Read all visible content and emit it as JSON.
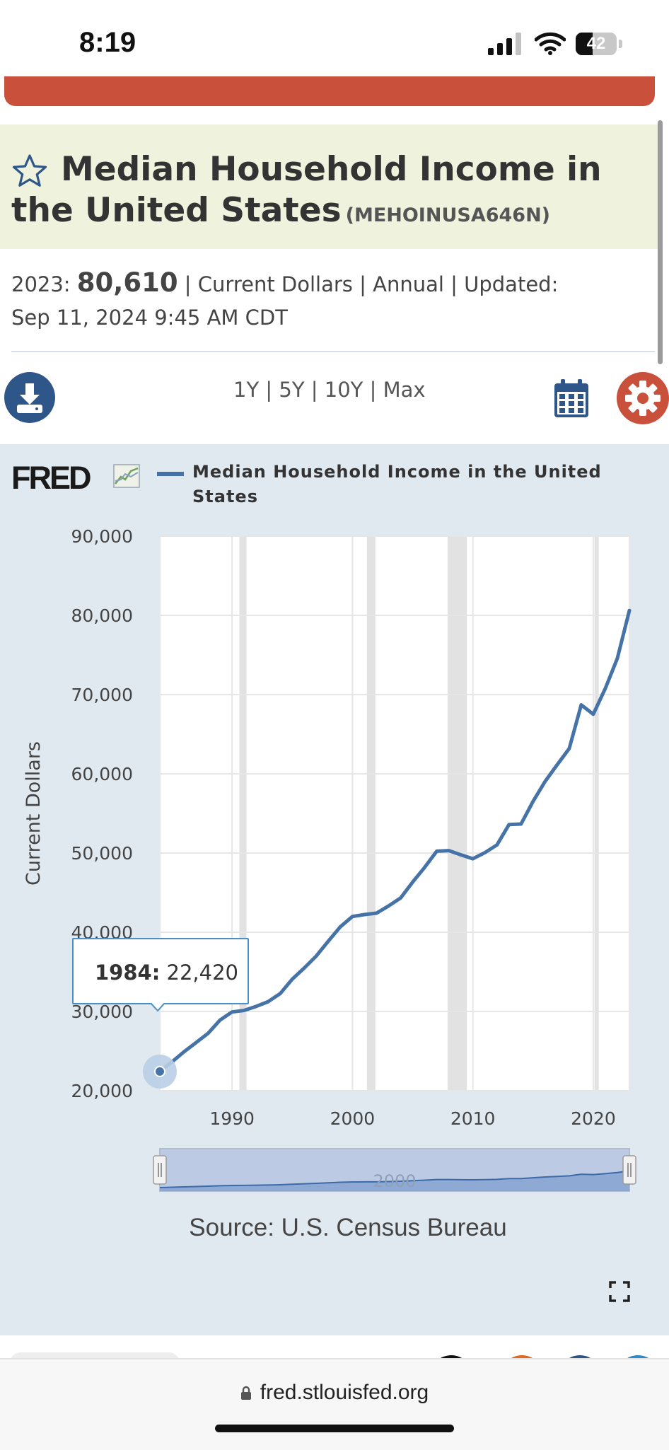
{
  "status_bar": {
    "time": "8:19",
    "battery": "42",
    "battery_level": 0.42
  },
  "header": {
    "title_line1": "Median Household Income in",
    "title_line2": "the United States",
    "series_id": "(MEHOINUSA646N)"
  },
  "meta": {
    "year_prefix": "2023: ",
    "value": "80,610",
    "details": " | Current Dollars | Annual | Updated:",
    "updated": "Sep 11, 2024 9:45 AM CDT"
  },
  "toolbar": {
    "ranges": [
      "1Y",
      "5Y",
      "10Y",
      "Max"
    ],
    "separator": " | "
  },
  "chart": {
    "logo": "FRED",
    "legend": "Median Household Income in the United States",
    "source": "Source: U.S. Census Bureau",
    "tooltip_year": "1984:",
    "tooltip_value": "22,420",
    "navigator_label": "2000"
  },
  "url_bar": {
    "url": "fred.stlouisfed.org"
  },
  "colors": {
    "series": "#4572a7",
    "accent_red": "#c9503a",
    "download_blue": "#2f5688",
    "panel_bg": "#e1e9f0",
    "recession": "#e2e2e2"
  },
  "icons": [
    "star-icon",
    "download-icon",
    "calendar-icon",
    "gear-icon",
    "fullscreen-icon",
    "lock-icon",
    "signal-icon",
    "wifi-icon",
    "battery-icon"
  ],
  "chart_data": {
    "type": "line",
    "title": "Median Household Income in the United States",
    "ylabel": "Current Dollars",
    "xlabel": "",
    "x_ticks": [
      1990,
      2000,
      2010,
      2020
    ],
    "y_ticks": [
      "20,000",
      "30,000",
      "40,000",
      "50,000",
      "60,000",
      "70,000",
      "80,000",
      "90,000"
    ],
    "xlim": [
      1984,
      2023
    ],
    "ylim": [
      20000,
      90000
    ],
    "recessions": [
      [
        1990.6,
        1991.2
      ],
      [
        2001.2,
        2001.9
      ],
      [
        2007.9,
        2009.5
      ],
      [
        2020.1,
        2020.3
      ]
    ],
    "series": [
      {
        "name": "Median Household Income in the United States",
        "x": [
          1984,
          1985,
          1986,
          1987,
          1988,
          1989,
          1990,
          1991,
          1992,
          1993,
          1994,
          1995,
          1996,
          1997,
          1998,
          1999,
          2000,
          2001,
          2002,
          2003,
          2004,
          2005,
          2006,
          2007,
          2008,
          2009,
          2010,
          2011,
          2012,
          2013,
          2014,
          2015,
          2016,
          2017,
          2018,
          2019,
          2020,
          2021,
          2022,
          2023
        ],
        "y": [
          22420,
          23620,
          24900,
          26060,
          27230,
          28910,
          29940,
          30130,
          30640,
          31240,
          32260,
          34080,
          35490,
          37010,
          38890,
          40700,
          41990,
          42230,
          42410,
          43320,
          44330,
          46330,
          48200,
          50230,
          50300,
          49780,
          49280,
          50050,
          51020,
          53590,
          53660,
          56520,
          59040,
          61140,
          63180,
          68700,
          67520,
          70780,
          74580,
          80610
        ]
      }
    ]
  }
}
